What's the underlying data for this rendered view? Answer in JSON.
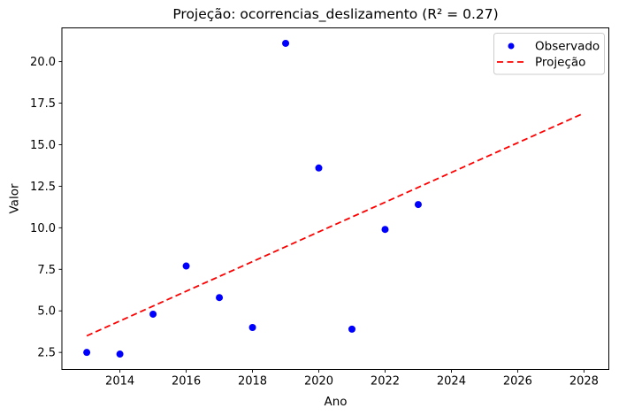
{
  "figure": {
    "background": "#ffffff"
  },
  "chart_data": {
    "type": "scatter",
    "title": "Projeção: ocorrencias_deslizamento (R² = 0.27)",
    "xlabel": "Ano",
    "ylabel": "Valor",
    "xlim": [
      2012.25,
      2028.75
    ],
    "ylim": [
      1.47,
      22.03
    ],
    "x_ticks": [
      2014,
      2016,
      2018,
      2020,
      2022,
      2024,
      2026,
      2028
    ],
    "y_ticks": [
      2.5,
      5.0,
      7.5,
      10.0,
      12.5,
      15.0,
      17.5,
      20.0
    ],
    "grid": false,
    "colors": {
      "observed": "#0000ff",
      "projection": "#ff0000",
      "spine": "#000000",
      "legend_border": "#cccccc"
    },
    "legend": {
      "position": "upper right",
      "entries": [
        {
          "label": "Observado",
          "marker": "dot",
          "color": "#0000ff"
        },
        {
          "label": "Projeção",
          "marker": "dashed-line",
          "color": "#ff0000"
        }
      ]
    },
    "series": [
      {
        "name": "Observado",
        "type": "scatter",
        "color": "#0000ff",
        "x": [
          2013,
          2014,
          2015,
          2016,
          2017,
          2018,
          2019,
          2020,
          2021,
          2022,
          2023
        ],
        "y": [
          2.5,
          2.4,
          4.8,
          7.7,
          5.8,
          4.0,
          21.1,
          13.6,
          3.9,
          9.9,
          11.4
        ]
      },
      {
        "name": "Projeção",
        "type": "line",
        "style": "dashed",
        "color": "#ff0000",
        "x": [
          2013,
          2028
        ],
        "y": [
          3.5,
          16.9
        ]
      }
    ]
  }
}
